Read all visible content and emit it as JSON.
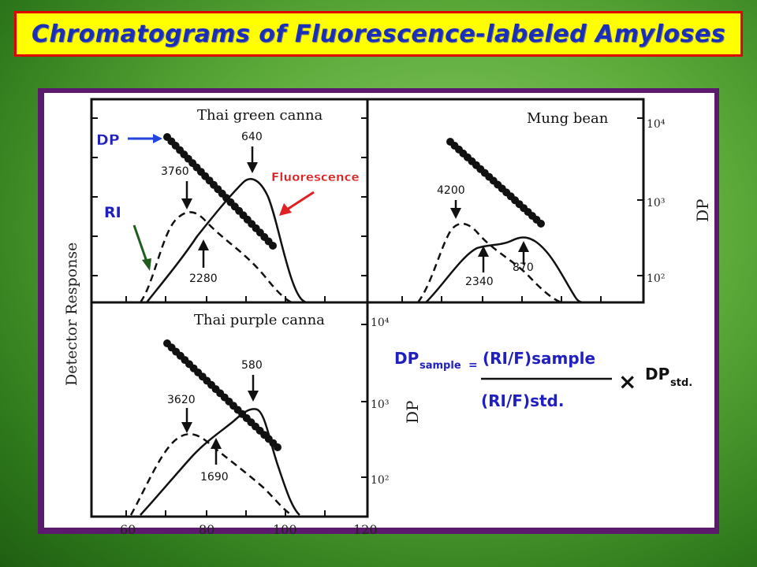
{
  "title": "Chromatograms of Fluorescence-labeled Amyloses",
  "annotations": {
    "dp": "DP",
    "ri": "RI",
    "fluorescence": "Fluorescence",
    "detector_response": "Detector Response"
  },
  "panels": {
    "thai_green": {
      "name": "Thai green canna",
      "peak_ri": "3760",
      "peak_fl": "640",
      "val_low": "2280"
    },
    "mung_bean": {
      "name": "Mung bean",
      "peak_ri": "4200",
      "val_low": "2340",
      "val_fl": "870"
    },
    "thai_purple": {
      "name": "Thai purple canna",
      "peak_ri": "3620",
      "peak_fl": "580",
      "val_low": "1690"
    }
  },
  "dp_axis": {
    "label": "DP",
    "ticks_top": [
      "10⁴",
      "10³",
      "10²"
    ],
    "ticks_bottom": [
      "10⁴",
      "10³",
      "10²"
    ]
  },
  "x_axis": {
    "ticks": [
      "60",
      "80",
      "100",
      "120"
    ]
  },
  "formula": {
    "lhs": "DP",
    "lhs_sub": "sample",
    "eq": "=",
    "numerator": "(RI/F)sample",
    "denominator": "(RI/F)std.",
    "times": "×",
    "rhs": "DP",
    "rhs_sub": "std."
  },
  "colors": {
    "title_bg": "#ffff00",
    "title_border": "#e00000",
    "title_text": "#1a2fb8",
    "label_blue": "#2020c0",
    "arrow_blue": "#2244dd",
    "arrow_red": "#e02020",
    "arrow_green": "#1f5e1f",
    "frame": "#5b1a6e"
  }
}
